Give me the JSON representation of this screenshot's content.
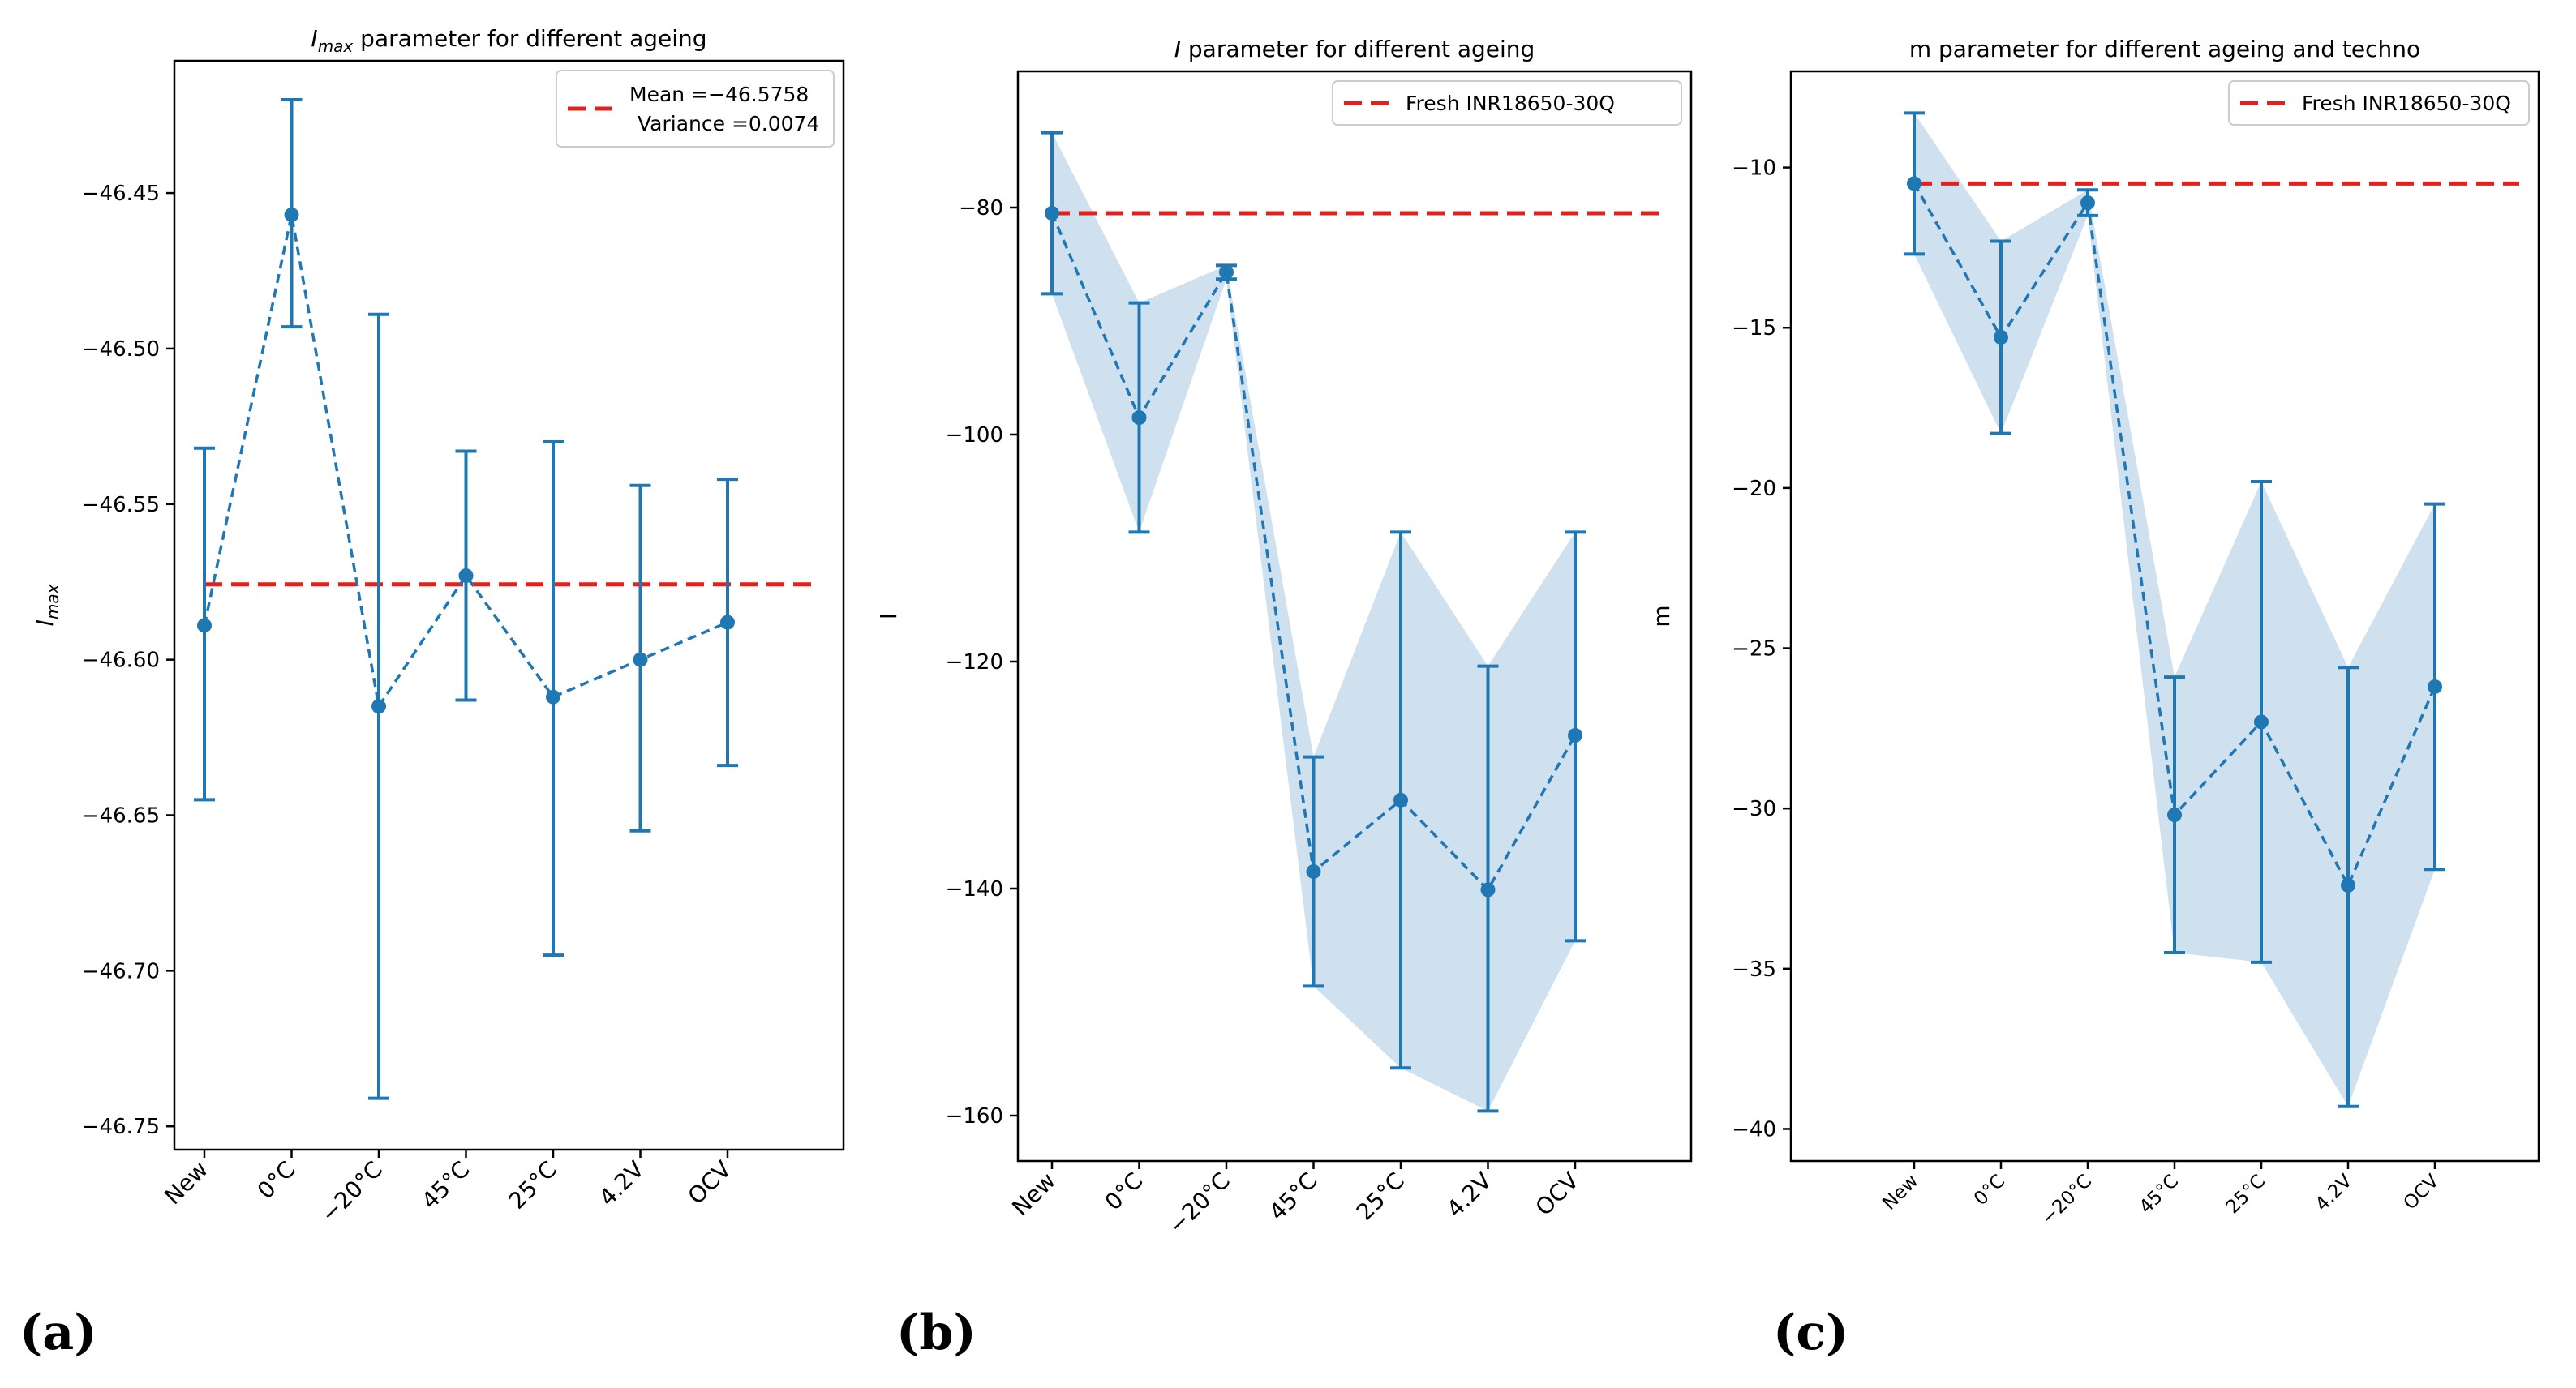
{
  "chart_data": [
    {
      "panel": "(a)",
      "type": "line",
      "title": "I_max parameter for different ageing",
      "title_main": "I",
      "title_sub": "max",
      "title_rest": " parameter for different ageing",
      "xlabel": "",
      "ylabel": "I_max",
      "ylabel_main": "I",
      "ylabel_sub": "max",
      "categories": [
        "New",
        "0°C",
        "−20°C",
        "45°C",
        "25°C",
        "4.2V",
        "OCV"
      ],
      "series": [
        {
          "values": [
            -46.589,
            -46.457,
            -46.615,
            -46.573,
            -46.612,
            -46.6,
            -46.588
          ],
          "err_low": [
            -46.645,
            -46.493,
            -46.741,
            -46.613,
            -46.695,
            -46.655,
            -46.634
          ],
          "err_high": [
            -46.532,
            -46.42,
            -46.489,
            -46.533,
            -46.53,
            -46.544,
            -46.542
          ]
        }
      ],
      "band": false,
      "reference": {
        "value": -46.5758,
        "label_line1": "Mean =−46.5758",
        "label_line2": "Variance =0.0074"
      },
      "yticks": [
        "-46.45",
        "-46.50",
        "-46.55",
        "-46.60",
        "-46.65",
        "-46.70",
        "-46.75"
      ],
      "ytick_values": [
        -46.45,
        -46.5,
        -46.55,
        -46.6,
        -46.65,
        -46.7,
        -46.75
      ],
      "ylim": [
        -46.7575,
        -46.4075
      ],
      "legend_position": "top-right",
      "grid": false
    },
    {
      "panel": "(b)",
      "type": "line",
      "title": "I parameter for different ageing",
      "title_main": "I",
      "title_sub": "",
      "title_rest": " parameter for different ageing",
      "xlabel": "",
      "ylabel": "I",
      "ylabel_main": "I",
      "ylabel_sub": "",
      "categories": [
        "New",
        "0°C",
        "−20°C",
        "45°C",
        "25°C",
        "4.2V",
        "OCV"
      ],
      "series": [
        {
          "values": [
            -80.5,
            -98.5,
            -85.7,
            -138.5,
            -132.2,
            -140.1,
            -126.5
          ],
          "err_low": [
            -87.6,
            -108.6,
            -86.3,
            -148.6,
            -155.8,
            -159.6,
            -144.6
          ],
          "err_high": [
            -73.4,
            -88.4,
            -85.1,
            -128.4,
            -108.6,
            -120.4,
            -108.6
          ]
        }
      ],
      "band": true,
      "reference": {
        "value": -80.5,
        "label_line1": "Fresh INR18650-30Q",
        "label_line2": ""
      },
      "yticks": [
        "-80",
        "-100",
        "-120",
        "-140",
        "-160"
      ],
      "ytick_values": [
        -80,
        -100,
        -120,
        -140,
        -160
      ],
      "ylim": [
        -164.0,
        -68.0
      ],
      "legend_position": "top-right",
      "grid": false
    },
    {
      "panel": "(c)",
      "type": "line",
      "title": "m parameter for different ageing and techno",
      "title_main": "m parameter for different ageing and techno",
      "title_sub": "",
      "title_rest": "",
      "xlabel": "",
      "ylabel": "m",
      "ylabel_main": "m",
      "ylabel_sub": "",
      "categories": [
        "New",
        "0°C",
        "−20°C",
        "45°C",
        "25°C",
        "4.2V",
        "OCV"
      ],
      "series": [
        {
          "values": [
            -10.5,
            -15.3,
            -11.1,
            -30.2,
            -27.3,
            -32.4,
            -26.2
          ],
          "err_low": [
            -12.7,
            -18.3,
            -11.5,
            -34.5,
            -34.8,
            -39.3,
            -31.9
          ],
          "err_high": [
            -8.3,
            -12.3,
            -10.7,
            -25.9,
            -19.8,
            -25.6,
            -20.5
          ]
        }
      ],
      "band": true,
      "reference": {
        "value": -10.5,
        "label_line1": "Fresh INR18650-30Q",
        "label_line2": ""
      },
      "yticks": [
        "-10",
        "-15",
        "-20",
        "-25",
        "-30",
        "-35",
        "-40"
      ],
      "ytick_values": [
        -10,
        -15,
        -20,
        -25,
        -30,
        -35,
        -40
      ],
      "ylim": [
        -41.0,
        -7.0
      ],
      "legend_position": "top-right",
      "grid": false
    }
  ],
  "colors": {
    "series": "#1f77b4",
    "band": "#cfe0ee",
    "reference": "#e3211c",
    "axes": "#000000"
  }
}
